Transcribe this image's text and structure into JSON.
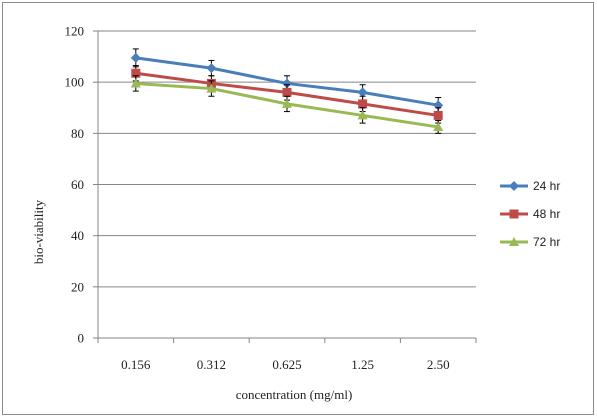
{
  "chart_data": {
    "type": "line",
    "categories": [
      "0.156",
      "0.312",
      "0.625",
      "1.25",
      "2.50"
    ],
    "xlabel": "concentration (mg/ml)",
    "ylabel": "bio-viability",
    "ylim": [
      0,
      120
    ],
    "yticks": [
      0,
      20,
      40,
      60,
      80,
      100,
      120
    ],
    "grid": "horizontal",
    "legend_position": "right",
    "series": [
      {
        "name": "24 hr",
        "color": "#4a7ebb",
        "marker": "diamond",
        "values": [
          109.5,
          105.5,
          99.5,
          96,
          91
        ],
        "errors": [
          3.5,
          3,
          3,
          3,
          3
        ]
      },
      {
        "name": "48 hr",
        "color": "#be4b48",
        "marker": "square",
        "values": [
          103.5,
          99.5,
          96,
          91.5,
          87
        ],
        "errors": [
          3,
          3,
          3,
          3,
          3
        ]
      },
      {
        "name": "72 hr",
        "color": "#98b954",
        "marker": "triangle",
        "values": [
          99.5,
          97.5,
          91.5,
          87,
          82.5
        ],
        "errors": [
          3,
          3,
          3,
          3,
          2.5
        ]
      }
    ]
  }
}
